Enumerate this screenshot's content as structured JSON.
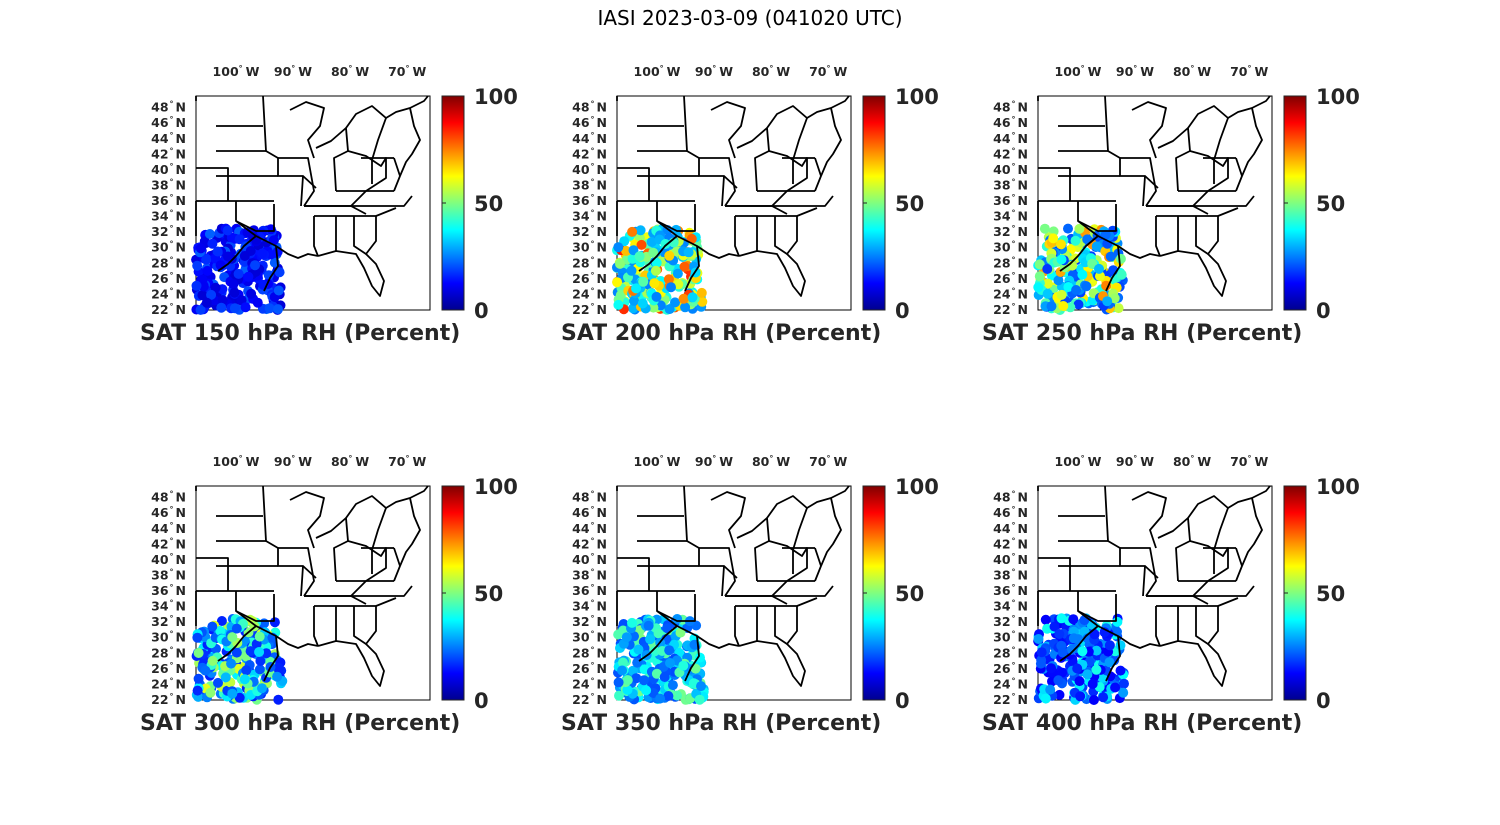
{
  "title": "IASI 2023-03-09 (041020 UTC)",
  "colorbar": {
    "ticks": [
      "0",
      "50",
      "100"
    ],
    "colormap": "jet",
    "colors": [
      "#00008f",
      "#0000ff",
      "#00ffff",
      "#ffff00",
      "#ff0000",
      "#800000"
    ]
  },
  "lon_ticks": [
    "100",
    "90",
    "80",
    "70"
  ],
  "lon_suffix": "W",
  "lat_ticks": [
    "22",
    "24",
    "26",
    "28",
    "30",
    "32",
    "34",
    "36",
    "38",
    "40",
    "42",
    "44",
    "46",
    "48"
  ],
  "lat_suffix": "N",
  "degree_symbol": "°",
  "panels": [
    {
      "id": "150",
      "label": "SAT 150 hPa RH (Percent)",
      "rh_low": 8,
      "rh_high": 22
    },
    {
      "id": "200",
      "label": "SAT 200 hPa RH (Percent)",
      "rh_low": 25,
      "rh_high": 85
    },
    {
      "id": "250",
      "label": "SAT 250 hPa RH (Percent)",
      "rh_low": 18,
      "rh_high": 75
    },
    {
      "id": "300",
      "label": "SAT 300 hPa RH (Percent)",
      "rh_low": 15,
      "rh_high": 60
    },
    {
      "id": "350",
      "label": "SAT 350 hPa RH (Percent)",
      "rh_low": 20,
      "rh_high": 50
    },
    {
      "id": "400",
      "label": "SAT 400 hPa RH (Percent)",
      "rh_low": 12,
      "rh_high": 40
    }
  ]
}
